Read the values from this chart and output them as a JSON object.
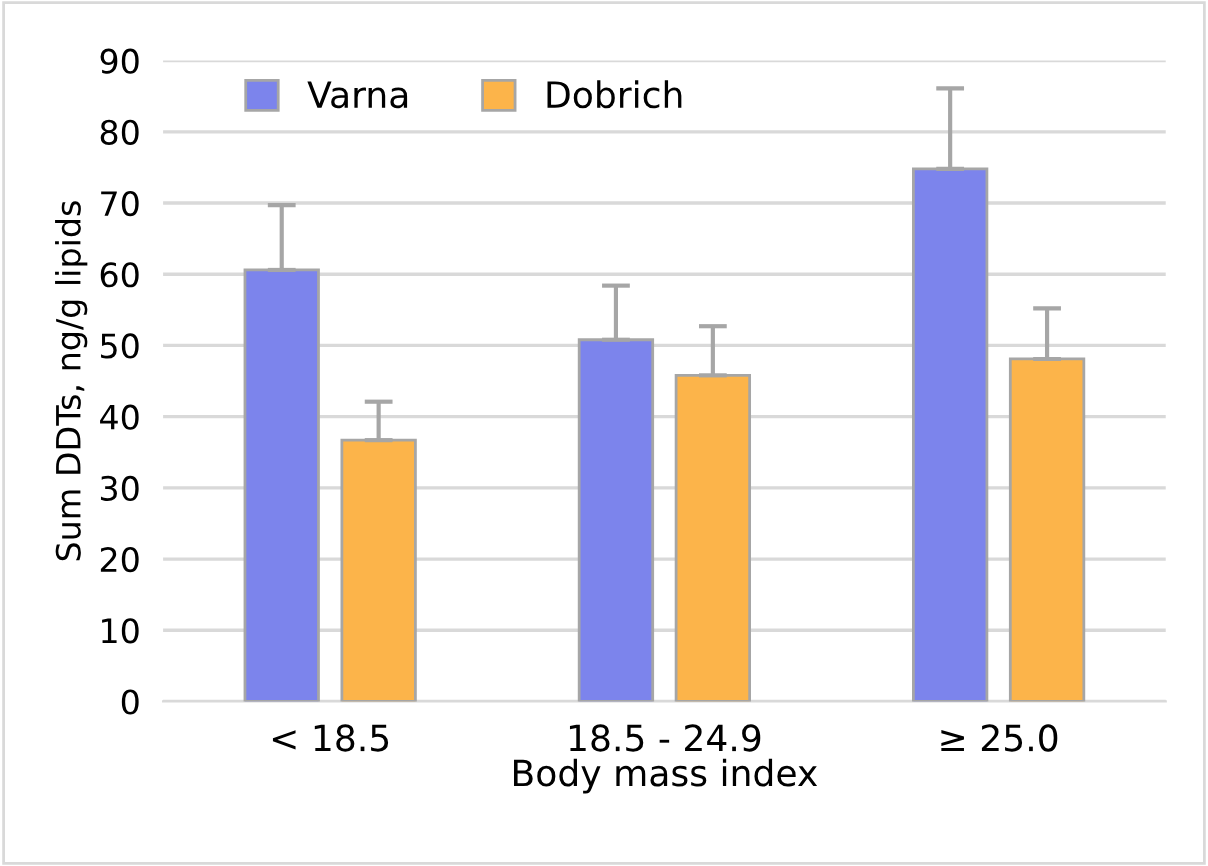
{
  "chart_data": {
    "type": "bar",
    "xlabel": "Body mass index",
    "ylabel": "Sum DDTs, ng/g lipids",
    "categories": [
      "< 18.5",
      "18.5 - 24.9",
      "≥ 25.0"
    ],
    "series": [
      {
        "name": "Varna",
        "color": "#7c84ec",
        "values": [
          60.6,
          50.8,
          74.8
        ],
        "errors": [
          [
            60.6,
            69.7
          ],
          [
            50.8,
            58.4
          ],
          [
            74.8,
            86.1
          ]
        ]
      },
      {
        "name": "Dobrich",
        "color": "#fcb44a",
        "values": [
          36.7,
          45.8,
          48.1
        ],
        "errors": [
          [
            36.7,
            42.1
          ],
          [
            45.8,
            52.7
          ],
          [
            48.1,
            55.2
          ]
        ]
      }
    ],
    "ylim": [
      0,
      90
    ],
    "yticks": [
      0,
      10,
      20,
      30,
      40,
      50,
      60,
      70,
      80,
      90
    ],
    "grid": "y",
    "legend": "top left"
  }
}
